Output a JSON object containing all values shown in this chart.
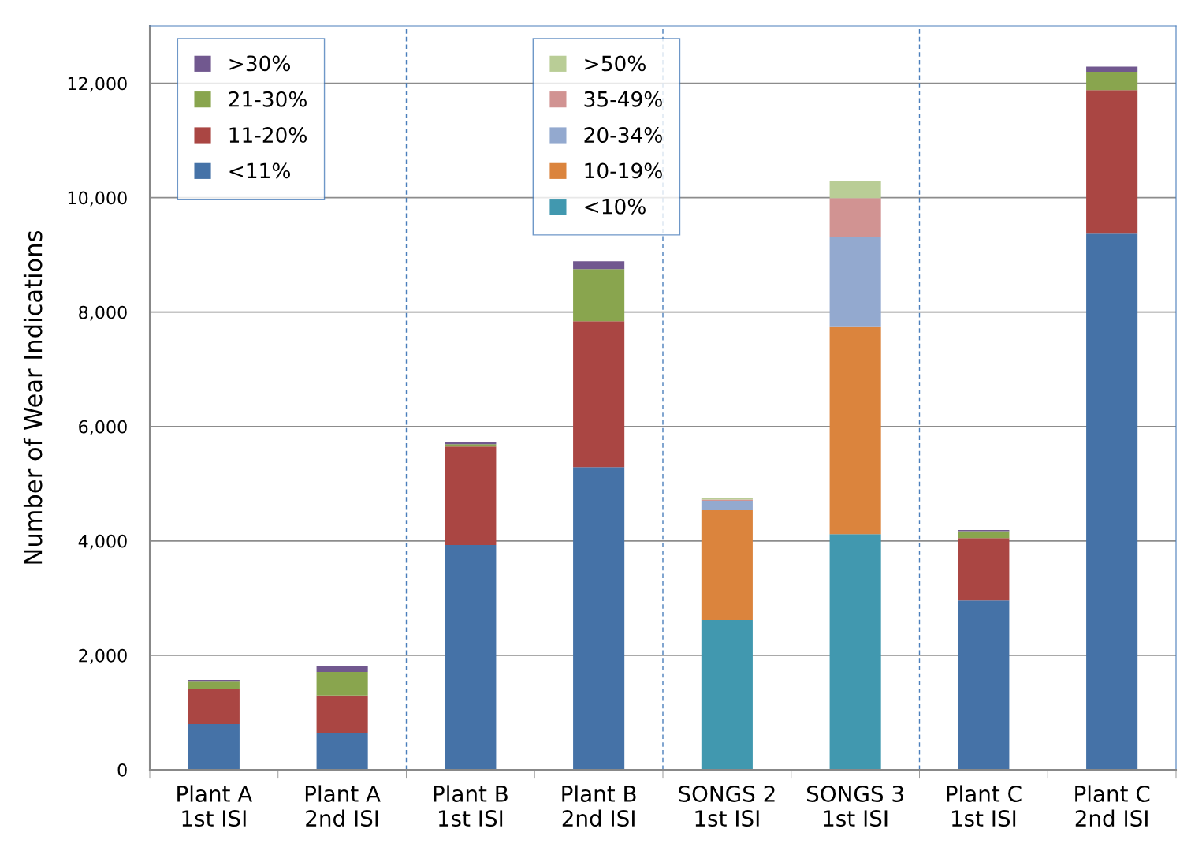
{
  "chart_data": {
    "type": "bar",
    "stacked": true,
    "ylabel": "Number of Wear Indications",
    "categories": [
      "Plant A\n1st ISI",
      "Plant A\n2nd ISI",
      "Plant B\n1st ISI",
      "Plant B\n2nd ISI",
      "SONGS 2\n1st ISI",
      "SONGS 3\n1st ISI",
      "Plant C\n1st ISI",
      "Plant C\n2nd ISI"
    ],
    "series": [
      {
        "name": "<11%",
        "color": "#4572a7",
        "values": [
          800,
          640,
          3930,
          5290,
          null,
          null,
          2960,
          9370
        ]
      },
      {
        "name": "11-20%",
        "color": "#aa4643",
        "values": [
          610,
          660,
          1720,
          2550,
          null,
          null,
          1090,
          2510
        ]
      },
      {
        "name": "21-30%",
        "color": "#89a54e",
        "values": [
          130,
          410,
          40,
          910,
          null,
          null,
          120,
          320
        ]
      },
      {
        "name": ">30%",
        "color": "#71588f",
        "values": [
          30,
          110,
          30,
          140,
          null,
          null,
          20,
          90
        ]
      },
      {
        "name": "<10%",
        "color": "#4198af",
        "values": [
          null,
          null,
          null,
          null,
          2620,
          4120,
          null,
          null
        ]
      },
      {
        "name": "10-19%",
        "color": "#db843d",
        "values": [
          null,
          null,
          null,
          null,
          1920,
          3630,
          null,
          null
        ]
      },
      {
        "name": "20-34%",
        "color": "#93a9cf",
        "values": [
          null,
          null,
          null,
          null,
          160,
          1560,
          null,
          null
        ]
      },
      {
        "name": "35-49%",
        "color": "#d19392",
        "values": [
          null,
          null,
          null,
          null,
          20,
          680,
          null,
          null
        ]
      },
      {
        "name": ">50%",
        "color": "#b9cd96",
        "values": [
          null,
          null,
          null,
          null,
          30,
          300,
          null,
          null
        ]
      }
    ],
    "ylim": [
      0,
      13000
    ],
    "yticks": [
      {
        "value": 0,
        "label": "0"
      },
      {
        "value": 2000,
        "label": "2,000"
      },
      {
        "value": 4000,
        "label": "4,000"
      },
      {
        "value": 6000,
        "label": "6,000"
      },
      {
        "value": 8000,
        "label": "8,000"
      },
      {
        "value": 10000,
        "label": "10,000"
      },
      {
        "value": 12000,
        "label": "12,000"
      }
    ],
    "grid": "y",
    "legend": "top"
  }
}
